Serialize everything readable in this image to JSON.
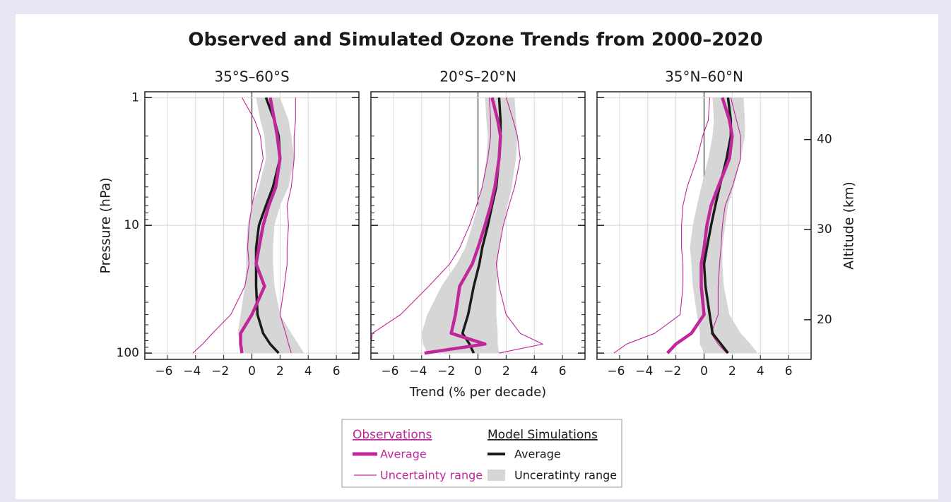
{
  "title": "Observed and Simulated Ozone Trends from 2000–2020",
  "legend": {
    "observations": {
      "title": "Observations",
      "color": "#c0279b",
      "average": "Average",
      "range": "Uncertainty range"
    },
    "model": {
      "title": "Model Simulations",
      "color": "#1a1a1a",
      "band_color": "#d6d6d6",
      "average": "Average",
      "range": "Unceratinty range"
    }
  },
  "chart_data": [
    {
      "type": "line",
      "title": "35°S–60°S",
      "ylabel": "Pressure  (hPa)",
      "ylog": true,
      "grid": true,
      "y": [
        1,
        1.5,
        2,
        3,
        5,
        7,
        10,
        15,
        20,
        30,
        50,
        70,
        85,
        100
      ],
      "xlim": [
        -7.6,
        7.6
      ],
      "xticks": [
        {
          "value": -6,
          "label": "−6"
        },
        {
          "value": -4,
          "label": "−4"
        },
        {
          "value": -2,
          "label": "−2"
        },
        0,
        2,
        4,
        6
      ],
      "ylim": [
        0.9,
        112
      ],
      "yticks": [
        1,
        10,
        100
      ],
      "yminorticks": [
        2,
        3,
        4,
        5,
        6,
        7,
        8,
        9,
        20,
        30,
        40,
        50,
        60,
        70,
        80,
        90
      ],
      "show_ytick_labels": true,
      "obs": {
        "average": [
          1.3,
          1.6,
          1.8,
          2.0,
          1.7,
          1.2,
          0.8,
          0.5,
          0.3,
          0.9,
          0.0,
          -0.8,
          -0.8,
          -0.7
        ],
        "low": [
          -0.7,
          0.2,
          0.6,
          0.8,
          0.3,
          0,
          -0.2,
          -0.3,
          -0.2,
          -0.5,
          -1.5,
          -2.8,
          -3.5,
          -4.2
        ],
        "high": [
          3.1,
          3.1,
          3.0,
          3.0,
          2.8,
          2.5,
          2.6,
          2.5,
          2.5,
          2.3,
          2.0,
          2.4,
          2.6,
          2.8
        ]
      },
      "model": {
        "average": [
          1.0,
          1.6,
          1.9,
          2.0,
          1.5,
          1.0,
          0.5,
          0.3,
          0.3,
          0.3,
          0.4,
          0.8,
          1.3,
          1.9
        ],
        "low": [
          0.3,
          0.6,
          0.9,
          1.0,
          0.5,
          0,
          -0.3,
          -0.4,
          -0.4,
          -0.5,
          -0.8,
          -1.0,
          -0.8,
          -0.5
        ],
        "high": [
          2.0,
          2.6,
          2.8,
          3.0,
          2.6,
          2.0,
          1.6,
          1.5,
          1.5,
          1.6,
          2.0,
          2.8,
          3.3,
          3.7
        ]
      }
    },
    {
      "type": "line",
      "title": "20°S–20°N",
      "xlabel": "Trend (% per decade)",
      "ylog": true,
      "grid": true,
      "y": [
        1,
        1.5,
        2,
        3,
        5,
        7,
        10,
        15,
        20,
        30,
        50,
        70,
        85,
        100
      ],
      "xlim": [
        -7.6,
        7.6
      ],
      "xticks": [
        {
          "value": -6,
          "label": "−6"
        },
        {
          "value": -4,
          "label": "−4"
        },
        {
          "value": -2,
          "label": "−2"
        },
        0,
        2,
        4,
        6
      ],
      "ylim": [
        0.9,
        112
      ],
      "yticks": [
        1,
        10,
        100
      ],
      "yminorticks": [
        2,
        3,
        4,
        5,
        6,
        7,
        8,
        9,
        20,
        30,
        40,
        50,
        60,
        70,
        80,
        90
      ],
      "show_ytick_labels": false,
      "obs": {
        "average": [
          1.0,
          1.4,
          1.6,
          1.5,
          1.2,
          0.9,
          0.5,
          0.0,
          -0.4,
          -1.3,
          -1.6,
          -1.9,
          0.5,
          -3.8
        ],
        "low": [
          0.8,
          0.9,
          0.9,
          0.7,
          0.3,
          -0.1,
          -0.6,
          -1.3,
          -2.0,
          -3.5,
          -5.5,
          -7.5,
          -7.6,
          -7.6
        ],
        "high": [
          2.0,
          2.5,
          2.8,
          3.0,
          2.6,
          2.2,
          1.8,
          1.5,
          1.3,
          1.5,
          2.0,
          3.0,
          4.6,
          1.5
        ]
      },
      "model": {
        "average": [
          1.5,
          1.6,
          1.6,
          1.5,
          1.3,
          1.0,
          0.7,
          0.3,
          0.1,
          -0.3,
          -0.7,
          -1.1,
          -0.6,
          -0.3
        ],
        "low": [
          0.5,
          0.6,
          0.7,
          0.6,
          0.3,
          0,
          -0.4,
          -0.9,
          -1.5,
          -2.6,
          -3.6,
          -4.0,
          -3.9,
          -3.6
        ],
        "high": [
          2.6,
          2.7,
          2.8,
          2.7,
          2.4,
          2.1,
          1.8,
          1.5,
          1.4,
          1.3,
          1.3,
          1.4,
          1.4,
          1.5
        ]
      }
    },
    {
      "type": "line",
      "title": "35°N–60°N",
      "y2label": "Altitude  (km)",
      "ylog": true,
      "grid": true,
      "y": [
        1,
        1.5,
        2,
        3,
        5,
        7,
        10,
        15,
        20,
        30,
        50,
        70,
        85,
        100
      ],
      "xlim": [
        -7.6,
        7.6
      ],
      "xticks": [
        {
          "value": -6,
          "label": "−6"
        },
        {
          "value": -4,
          "label": "−4"
        },
        {
          "value": -2,
          "label": "−2"
        },
        0,
        2,
        4,
        6
      ],
      "ylim": [
        0.9,
        112
      ],
      "yticks": [
        1,
        10,
        100
      ],
      "yminorticks": [
        2,
        3,
        4,
        5,
        6,
        7,
        8,
        9,
        20,
        30,
        40,
        50,
        60,
        70,
        80,
        90
      ],
      "show_ytick_labels": false,
      "y2lim": [
        15.6,
        45.3
      ],
      "y2ticks": [
        20,
        30,
        40
      ],
      "obs": {
        "average": [
          1.3,
          1.8,
          2.0,
          1.8,
          1.0,
          0.5,
          0.2,
          0.0,
          -0.2,
          -0.2,
          0.0,
          -0.9,
          -2.0,
          -2.6
        ],
        "low": [
          0.4,
          0.3,
          -0.1,
          -0.5,
          -1.2,
          -1.5,
          -1.6,
          -1.6,
          -1.5,
          -1.5,
          -1.7,
          -3.5,
          -5.5,
          -6.4
        ],
        "high": [
          1.9,
          2.3,
          2.6,
          2.6,
          2.0,
          1.5,
          1.3,
          1.2,
          1.1,
          1.0,
          1.0,
          0.5,
          1.0,
          1.6
        ]
      },
      "model": {
        "average": [
          1.7,
          1.9,
          1.9,
          1.6,
          1.1,
          0.8,
          0.5,
          0.2,
          0.0,
          0.1,
          0.4,
          0.6,
          1.2,
          1.7
        ],
        "low": [
          0.6,
          0.7,
          0.6,
          0.3,
          -0.2,
          -0.5,
          -0.8,
          -1.0,
          -0.9,
          -0.8,
          -0.5,
          -0.3,
          -0.3,
          0
        ],
        "high": [
          2.8,
          2.9,
          2.9,
          2.6,
          2.1,
          1.7,
          1.5,
          1.3,
          1.3,
          1.4,
          1.8,
          2.6,
          3.3,
          3.8
        ]
      }
    }
  ]
}
